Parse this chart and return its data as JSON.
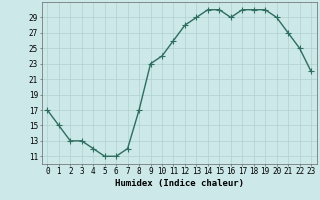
{
  "x": [
    0,
    1,
    2,
    3,
    4,
    5,
    6,
    7,
    8,
    9,
    10,
    11,
    12,
    13,
    14,
    15,
    16,
    17,
    18,
    19,
    20,
    21,
    22,
    23
  ],
  "y": [
    17,
    15,
    13,
    13,
    12,
    11,
    11,
    12,
    17,
    23,
    24,
    26,
    28,
    29,
    30,
    30,
    29,
    30,
    30,
    30,
    29,
    27,
    25,
    22
  ],
  "line_color": "#2d6e5e",
  "marker_color": "#2d6e5e",
  "bg_color": "#cce8e8",
  "grid_color": "#b0d0d0",
  "xlabel": "Humidex (Indice chaleur)",
  "xlim": [
    -0.5,
    23.5
  ],
  "ylim": [
    10,
    31
  ],
  "yticks": [
    11,
    13,
    15,
    17,
    19,
    21,
    23,
    25,
    27,
    29
  ],
  "xticks": [
    0,
    1,
    2,
    3,
    4,
    5,
    6,
    7,
    8,
    9,
    10,
    11,
    12,
    13,
    14,
    15,
    16,
    17,
    18,
    19,
    20,
    21,
    22,
    23
  ],
  "tick_fontsize": 5.5,
  "xlabel_fontsize": 6.5,
  "line_width": 1.0,
  "marker_size": 2.2
}
